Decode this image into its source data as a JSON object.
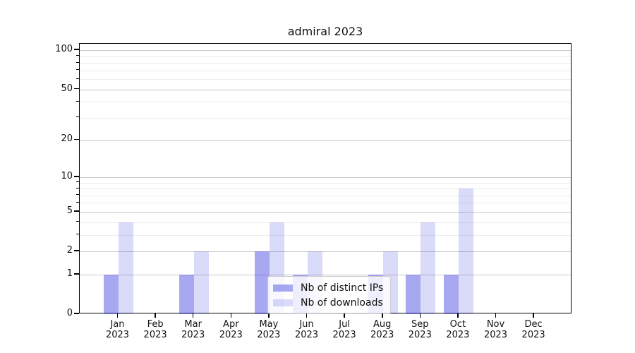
{
  "figure": {
    "background_color": "#ffffff"
  },
  "chart_data": {
    "type": "bar",
    "title": "admiral 2023",
    "x_categories": [
      {
        "month": "Jan",
        "year": "2023"
      },
      {
        "month": "Feb",
        "year": "2023"
      },
      {
        "month": "Mar",
        "year": "2023"
      },
      {
        "month": "Apr",
        "year": "2023"
      },
      {
        "month": "May",
        "year": "2023"
      },
      {
        "month": "Jun",
        "year": "2023"
      },
      {
        "month": "Jul",
        "year": "2023"
      },
      {
        "month": "Aug",
        "year": "2023"
      },
      {
        "month": "Sep",
        "year": "2023"
      },
      {
        "month": "Oct",
        "year": "2023"
      },
      {
        "month": "Nov",
        "year": "2023"
      },
      {
        "month": "Dec",
        "year": "2023"
      }
    ],
    "series": [
      {
        "name": "Nb of distinct IPs",
        "color": "rgba(70,70,225,0.47)",
        "values": [
          1,
          0,
          1,
          0,
          2,
          1,
          0,
          1,
          1,
          1,
          0,
          0
        ]
      },
      {
        "name": "Nb of downloads",
        "color": "rgba(70,70,225,0.20)",
        "values": [
          4,
          0,
          2,
          0,
          4,
          2,
          0,
          2,
          4,
          8,
          0,
          0
        ]
      }
    ],
    "y_axis": {
      "scale": "log1p",
      "major_ticks": [
        0,
        1,
        2,
        5,
        10,
        20,
        50,
        100
      ],
      "minor_ticks": [
        3,
        4,
        6,
        7,
        8,
        9,
        30,
        40,
        60,
        70,
        80,
        90
      ]
    },
    "grid": {
      "major_color": "#c9c9c9",
      "minor_color": "#ececec"
    },
    "legend": {
      "position": "lower center"
    }
  }
}
